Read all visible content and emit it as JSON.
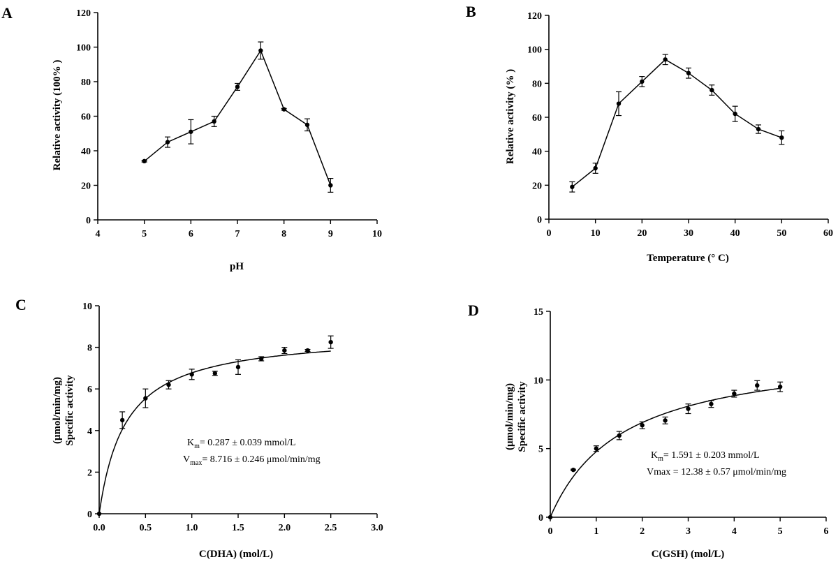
{
  "chart_data": [
    {
      "panel": "A",
      "type": "line",
      "xlabel": "pH",
      "ylabel": "Relative activity (100% )",
      "xlim": [
        4,
        10
      ],
      "xticks": [
        4,
        5,
        6,
        7,
        8,
        9,
        10
      ],
      "ylim": [
        0,
        120
      ],
      "yticks": [
        0,
        20,
        40,
        60,
        80,
        100,
        120
      ],
      "x": [
        5,
        5.5,
        6,
        6.5,
        7,
        7.5,
        8,
        8.5,
        9
      ],
      "y": [
        34,
        45,
        51,
        57,
        77,
        98,
        64,
        55,
        20
      ],
      "err": [
        0.5,
        3,
        7,
        3,
        2,
        5,
        0.5,
        3.5,
        4
      ]
    },
    {
      "panel": "B",
      "type": "line",
      "xlabel": "Temperature (° C)",
      "ylabel": "Relative activity (% )",
      "xlim": [
        0,
        60
      ],
      "xticks": [
        0,
        10,
        20,
        30,
        40,
        50,
        60
      ],
      "ylim": [
        0,
        120
      ],
      "yticks": [
        0,
        20,
        40,
        60,
        80,
        100,
        120
      ],
      "x": [
        5,
        10,
        15,
        20,
        25,
        30,
        35,
        40,
        45,
        50
      ],
      "y": [
        19,
        30,
        68,
        81,
        94,
        86,
        76,
        62,
        53,
        48
      ],
      "err": [
        3,
        3,
        7,
        3,
        3,
        3,
        3,
        4.5,
        2.5,
        4
      ]
    },
    {
      "panel": "C",
      "type": "scatter",
      "xlabel": "C(DHA) (mol/L)",
      "ylabel_line1": "Specific activity",
      "ylabel_line2": "(μmol/min/mg)",
      "xlim": [
        0,
        3
      ],
      "xticks": [
        "0.0",
        "0.5",
        "1.0",
        "1.5",
        "2.0",
        "2.5",
        "3.0"
      ],
      "ylim": [
        0,
        10
      ],
      "yticks": [
        0,
        2,
        4,
        6,
        8,
        10
      ],
      "x": [
        0,
        0.25,
        0.5,
        0.75,
        1.0,
        1.25,
        1.5,
        1.75,
        2.0,
        2.25,
        2.5
      ],
      "y": [
        0,
        4.5,
        5.55,
        6.2,
        6.7,
        6.75,
        7.05,
        7.45,
        7.85,
        7.85,
        8.25
      ],
      "err": [
        0,
        0.4,
        0.45,
        0.2,
        0.25,
        0.1,
        0.35,
        0.1,
        0.15,
        0.05,
        0.3
      ],
      "fit": {
        "model": "Michaelis-Menten",
        "km": 0.287,
        "vmax": 8.716,
        "x_max": 2.5
      },
      "annotation": {
        "km_sym": "K",
        "km_sub": "m",
        "km_text": "= 0.287 ±  0.039 mmol/L",
        "vmax_sym": "V",
        "vmax_sub": "max",
        "vmax_text": "= 8.716 ±  0.246 μmol/min/mg"
      }
    },
    {
      "panel": "D",
      "type": "scatter",
      "xlabel": "C(GSH) (mol/L)",
      "ylabel_line1": "Specific activity",
      "ylabel_line2": "(μmol/min/mg)",
      "xlim": [
        0,
        6
      ],
      "xticks": [
        0,
        1,
        2,
        3,
        4,
        5,
        6
      ],
      "ylim": [
        0,
        15
      ],
      "yticks": [
        0,
        5,
        10,
        15
      ],
      "x": [
        0,
        0.5,
        1,
        1.5,
        2,
        2.5,
        3,
        3.5,
        4,
        4.5,
        5
      ],
      "y": [
        0,
        3.45,
        5.0,
        5.95,
        6.7,
        7.05,
        7.9,
        8.25,
        9.0,
        9.6,
        9.5
      ],
      "err": [
        0,
        0.05,
        0.2,
        0.3,
        0.25,
        0.25,
        0.35,
        0.25,
        0.25,
        0.35,
        0.35
      ],
      "fit": {
        "model": "Michaelis-Menten",
        "km": 1.591,
        "vmax": 12.38,
        "x_max": 5
      },
      "annotation": {
        "km_sym": "K",
        "km_sub": "m",
        "km_text": "= 1.591 ±  0.203 mmol/L",
        "vmax_text": "Vmax = 12.38 ±  0.57 μmol/min/mg"
      }
    }
  ]
}
